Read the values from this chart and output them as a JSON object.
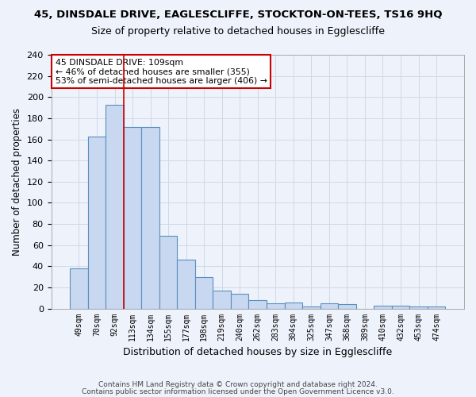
{
  "title": "45, DINSDALE DRIVE, EAGLESCLIFFE, STOCKTON-ON-TEES, TS16 9HQ",
  "subtitle": "Size of property relative to detached houses in Egglescliffe",
  "xlabel": "Distribution of detached houses by size in Egglescliffe",
  "ylabel": "Number of detached properties",
  "categories": [
    "49sqm",
    "70sqm",
    "92sqm",
    "113sqm",
    "134sqm",
    "155sqm",
    "177sqm",
    "198sqm",
    "219sqm",
    "240sqm",
    "262sqm",
    "283sqm",
    "304sqm",
    "325sqm",
    "347sqm",
    "368sqm",
    "389sqm",
    "410sqm",
    "432sqm",
    "453sqm",
    "474sqm"
  ],
  "values": [
    38,
    163,
    193,
    172,
    172,
    69,
    46,
    30,
    17,
    14,
    8,
    5,
    6,
    2,
    5,
    4,
    0,
    3,
    3,
    2,
    2
  ],
  "bar_color": "#c8d8f0",
  "bar_edge_color": "#5a8fc0",
  "grid_color": "#d0d8e8",
  "background_color": "#eef2fb",
  "vline_x": 2.5,
  "vline_color": "#cc0000",
  "annotation_line1": "45 DINSDALE DRIVE: 109sqm",
  "annotation_line2": "← 46% of detached houses are smaller (355)",
  "annotation_line3": "53% of semi-detached houses are larger (406) →",
  "annotation_box_color": "white",
  "annotation_box_edge": "#cc0000",
  "ylim": [
    0,
    240
  ],
  "yticks": [
    0,
    20,
    40,
    60,
    80,
    100,
    120,
    140,
    160,
    180,
    200,
    220,
    240
  ],
  "footnote1": "Contains HM Land Registry data © Crown copyright and database right 2024.",
  "footnote2": "Contains public sector information licensed under the Open Government Licence v3.0."
}
